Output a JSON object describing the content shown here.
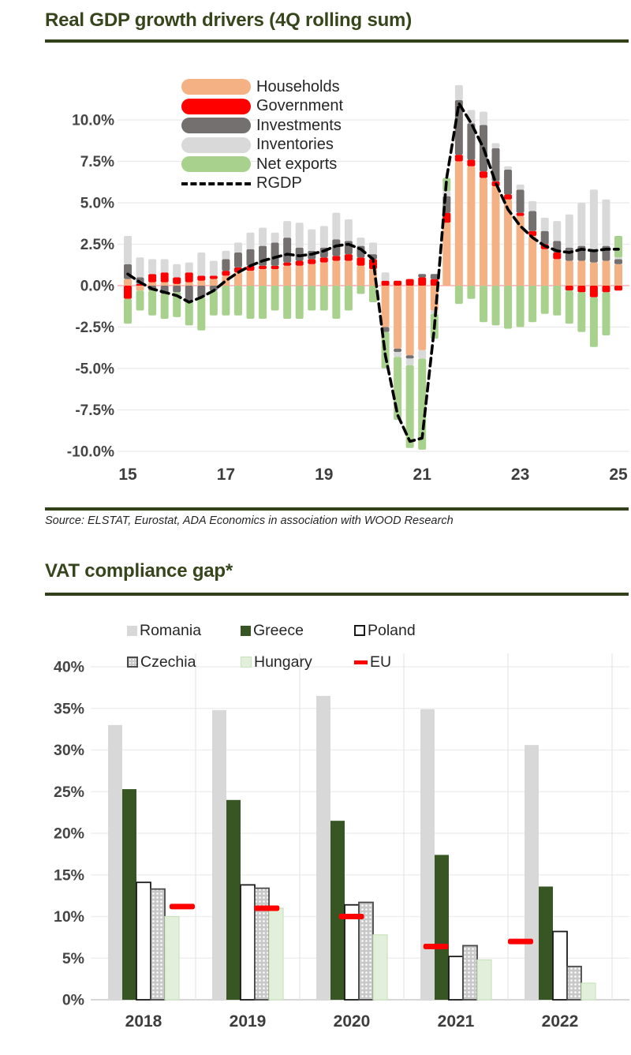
{
  "colors": {
    "accent_green": "#36451B",
    "axis_text": "#454545",
    "gridline": "#EAEAEA",
    "zero_line_red": "#FF8F8F"
  },
  "section1": {
    "title": "Real GDP growth drivers (4Q rolling sum)",
    "source_note": "Source: ELSTAT, Eurostat, ADA Economics in association with WOOD Research"
  },
  "section2": {
    "title": "VAT compliance gap*"
  },
  "chart_data": [
    {
      "type": "bar",
      "subtype": "stacked-bar-with-line",
      "title": "Real GDP growth drivers (4Q rolling sum)",
      "xlabel": "",
      "ylabel": "",
      "ylim": [
        -10.5,
        12.5
      ],
      "grid": true,
      "legend_position": "top-left-inside",
      "y_ticks": [
        10,
        7.5,
        5,
        2.5,
        0,
        -2.5,
        -5,
        -7.5,
        -10
      ],
      "y_tick_labels": [
        "10.0%",
        "7.5%",
        "5.0%",
        "2.5%",
        "0.0%",
        "-2.5%",
        "-5.0%",
        "-7.5%",
        "-10.0%"
      ],
      "x_tick_labels": [
        "15",
        "17",
        "19",
        "21",
        "23",
        "25"
      ],
      "x_tick_positions": [
        0,
        8,
        16,
        24,
        32,
        40
      ],
      "legend": [
        {
          "name": "Households",
          "color": "#F4B183",
          "marker": "rounded-bar"
        },
        {
          "name": "Government",
          "color": "#FF0000",
          "marker": "rounded-bar"
        },
        {
          "name": "Investments",
          "color": "#747070",
          "marker": "rounded-bar"
        },
        {
          "name": "Inventories",
          "color": "#D9D9D9",
          "marker": "rounded-bar"
        },
        {
          "name": "Net exports",
          "color": "#A9D18E",
          "marker": "rounded-bar"
        },
        {
          "name": "RGDP",
          "color": "#000000",
          "marker": "dashed-line"
        }
      ],
      "categories": [
        "2015Q1",
        "2015Q2",
        "2015Q3",
        "2015Q4",
        "2016Q1",
        "2016Q2",
        "2016Q3",
        "2016Q4",
        "2017Q1",
        "2017Q2",
        "2017Q3",
        "2017Q4",
        "2018Q1",
        "2018Q2",
        "2018Q3",
        "2018Q4",
        "2019Q1",
        "2019Q2",
        "2019Q3",
        "2019Q4",
        "2020Q1",
        "2020Q2",
        "2020Q3",
        "2020Q4",
        "2021Q1",
        "2021Q2",
        "2021Q3",
        "2021Q4",
        "2022Q1",
        "2022Q2",
        "2022Q3",
        "2022Q4",
        "2023Q1",
        "2023Q2",
        "2023Q3",
        "2023Q4",
        "2024Q1",
        "2024Q2",
        "2024Q3",
        "2024Q4",
        "2025Q1"
      ],
      "series": [
        {
          "name": "Households",
          "color": "#F4B183",
          "values": [
            0.4,
            -0.3,
            0.2,
            0.2,
            0.1,
            0.2,
            0.3,
            0.4,
            0.6,
            0.8,
            0.9,
            1.0,
            1.0,
            1.2,
            1.2,
            1.3,
            1.4,
            1.5,
            1.5,
            1.2,
            1.0,
            -2.5,
            -3.8,
            -4.2,
            -3.9,
            -1.5,
            3.8,
            7.5,
            7.2,
            6.5,
            6.0,
            5.2,
            4.2,
            3.0,
            2.2,
            1.6,
            1.5,
            1.5,
            1.4,
            1.5,
            1.3
          ]
        },
        {
          "name": "Government",
          "color": "#FF0000",
          "values": [
            -0.8,
            0.1,
            0.5,
            0.6,
            0.4,
            0.6,
            0.3,
            0.2,
            0.3,
            0.3,
            0.3,
            0.2,
            0.2,
            0.2,
            0.3,
            0.3,
            0.3,
            0.3,
            0.4,
            0.5,
            0.6,
            0.3,
            0.3,
            0.4,
            0.5,
            0.4,
            0.6,
            0.4,
            0.4,
            0.4,
            0.3,
            0.3,
            0.2,
            0.3,
            0.3,
            0.4,
            -0.3,
            -0.4,
            -0.7,
            -0.4,
            -0.3
          ]
        },
        {
          "name": "Investments",
          "color": "#747070",
          "values": [
            0.9,
            0.4,
            -0.3,
            -0.5,
            -0.4,
            -0.9,
            -0.7,
            -0.3,
            0.7,
            0.9,
            1.0,
            1.2,
            1.4,
            1.5,
            0.8,
            0.5,
            0.6,
            1.0,
            0.8,
            0.7,
            0.3,
            -0.3,
            -0.2,
            -0.2,
            0.2,
            0.3,
            1.0,
            3.3,
            2.2,
            2.8,
            2.0,
            1.5,
            1.4,
            1.2,
            0.8,
            0.7,
            0.8,
            0.9,
            0.8,
            0.9,
            0.3
          ]
        },
        {
          "name": "Inventories",
          "color": "#D9D9D9",
          "values": [
            1.7,
            1.2,
            0.9,
            0.8,
            0.8,
            0.6,
            1.4,
            0.9,
            0.5,
            0.6,
            1.0,
            1.1,
            0.6,
            1.0,
            1.5,
            1.3,
            1.3,
            1.6,
            1.3,
            0.5,
            0.7,
            0.5,
            -0.3,
            -0.4,
            -0.5,
            -0.2,
            0.3,
            0.9,
            0.8,
            0.8,
            0.3,
            0.2,
            0.3,
            0.6,
            0.8,
            1.2,
            2.0,
            2.6,
            3.6,
            2.8,
            0.1
          ]
        },
        {
          "name": "Net exports",
          "color": "#A9D18E",
          "values": [
            -1.5,
            -1.2,
            -1.5,
            -1.5,
            -1.5,
            -1.5,
            -2.0,
            -1.5,
            -1.8,
            -1.8,
            -2.0,
            -2.0,
            -1.5,
            -2.0,
            -2.0,
            -1.5,
            -1.5,
            -2.0,
            -1.5,
            -0.5,
            -1.0,
            -2.2,
            -3.8,
            -5.0,
            -5.5,
            -1.5,
            0.8,
            -1.1,
            -0.8,
            -2.2,
            -2.4,
            -2.6,
            -2.5,
            -2.2,
            -1.7,
            -1.8,
            -2.0,
            -2.4,
            -3.0,
            -2.6,
            1.3
          ]
        }
      ],
      "line_series": {
        "name": "RGDP",
        "color": "#000000",
        "style": "dashed",
        "values": [
          0.7,
          0.2,
          -0.2,
          -0.4,
          -0.6,
          -1.0,
          -0.7,
          -0.3,
          0.3,
          0.8,
          1.2,
          1.5,
          1.7,
          1.9,
          1.8,
          1.9,
          2.1,
          2.4,
          2.5,
          2.2,
          1.6,
          -4.2,
          -7.8,
          -9.4,
          -9.2,
          -2.5,
          6.5,
          11.0,
          9.8,
          8.3,
          6.2,
          4.6,
          3.6,
          2.9,
          2.4,
          2.1,
          2.0,
          2.2,
          2.1,
          2.2,
          2.2
        ]
      }
    },
    {
      "type": "bar",
      "subtype": "grouped-bar-with-dash-line",
      "title": "VAT compliance gap*",
      "xlabel": "",
      "ylabel": "",
      "ylim": [
        0,
        42
      ],
      "grid": true,
      "legend_position": "top-inside-two-rows",
      "y_ticks": [
        0,
        5,
        10,
        15,
        20,
        25,
        30,
        35,
        40
      ],
      "y_tick_labels": [
        "0%",
        "5%",
        "10%",
        "15%",
        "20%",
        "25%",
        "30%",
        "35%",
        "40%"
      ],
      "categories": [
        "2018",
        "2019",
        "2020",
        "2021",
        "2022"
      ],
      "legend": [
        {
          "name": "Romania",
          "marker": "romania"
        },
        {
          "name": "Greece",
          "marker": "greece"
        },
        {
          "name": "Poland",
          "marker": "poland"
        },
        {
          "name": "Czechia",
          "marker": "czechia"
        },
        {
          "name": "Hungary",
          "marker": "hungary"
        },
        {
          "name": "EU",
          "marker": "eu"
        }
      ],
      "series": [
        {
          "name": "Romania",
          "color": "#D8D8D8",
          "values": [
            33.0,
            34.8,
            36.5,
            34.9,
            30.6
          ]
        },
        {
          "name": "Greece",
          "color": "#375623",
          "values": [
            25.3,
            24.0,
            21.5,
            17.4,
            13.6
          ]
        },
        {
          "name": "Poland",
          "color": "#FFFFFF",
          "border": "#1a1a1a",
          "values": [
            14.1,
            13.8,
            11.4,
            5.2,
            8.2
          ]
        },
        {
          "name": "Czechia",
          "color": "dot-pattern",
          "border": "#4A4A4A",
          "values": [
            13.3,
            13.4,
            11.7,
            6.5,
            4.0
          ]
        },
        {
          "name": "Hungary",
          "color": "#E2EFDA",
          "border": "#C9E3BC",
          "values": [
            10.0,
            11.0,
            7.8,
            4.8,
            2.0
          ]
        }
      ],
      "dash_series": {
        "name": "EU",
        "color": "#FF0000",
        "values": [
          11.2,
          11.0,
          10.0,
          6.4,
          7.0
        ]
      }
    }
  ]
}
